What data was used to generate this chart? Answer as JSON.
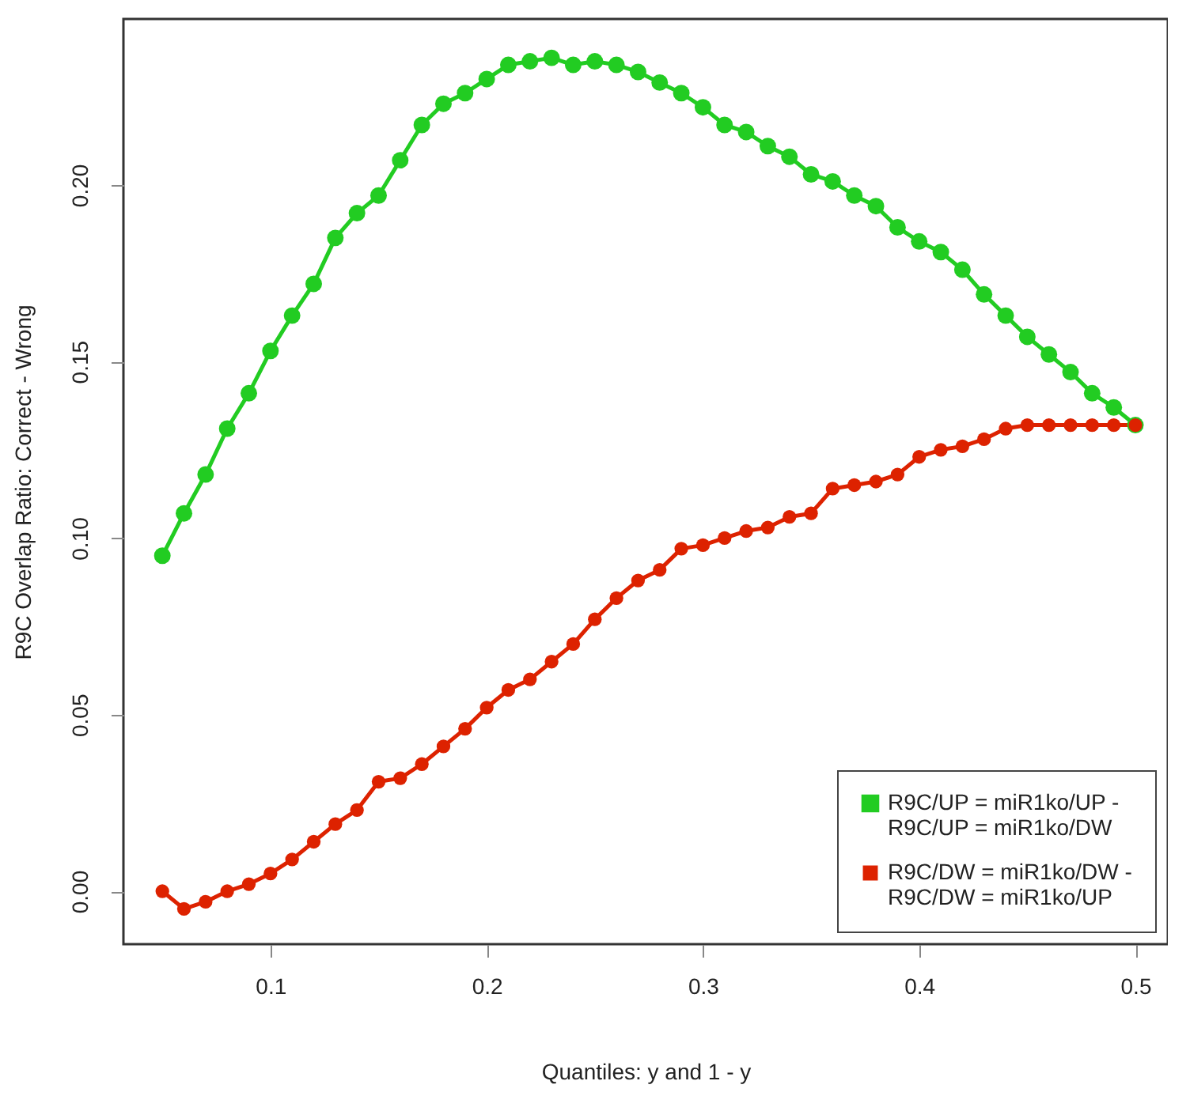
{
  "chart_data": {
    "type": "line",
    "xlabel": "Quantiles: y and 1 - y",
    "ylabel": "R9C Overlap Ratio: Correct - Wrong",
    "x": [
      0.05,
      0.06,
      0.07,
      0.08,
      0.09,
      0.1,
      0.11,
      0.12,
      0.13,
      0.14,
      0.15,
      0.16,
      0.17,
      0.18,
      0.19,
      0.2,
      0.21,
      0.22,
      0.23,
      0.24,
      0.25,
      0.26,
      0.27,
      0.28,
      0.29,
      0.3,
      0.31,
      0.32,
      0.33,
      0.34,
      0.35,
      0.36,
      0.37,
      0.38,
      0.39,
      0.4,
      0.41,
      0.42,
      0.43,
      0.44,
      0.45,
      0.46,
      0.47,
      0.48,
      0.49,
      0.5
    ],
    "series": [
      {
        "name": "R9C/UP = miR1ko/UP -\nR9C/UP = miR1ko/DW",
        "color": "#22cc22",
        "values": [
          0.095,
          0.107,
          0.118,
          0.131,
          0.141,
          0.153,
          0.163,
          0.172,
          0.185,
          0.192,
          0.197,
          0.207,
          0.217,
          0.223,
          0.226,
          0.23,
          0.234,
          0.235,
          0.236,
          0.234,
          0.235,
          0.234,
          0.232,
          0.229,
          0.226,
          0.222,
          0.217,
          0.215,
          0.211,
          0.208,
          0.203,
          0.201,
          0.197,
          0.194,
          0.188,
          0.184,
          0.181,
          0.176,
          0.169,
          0.163,
          0.157,
          0.152,
          0.147,
          0.141,
          0.137,
          0.132
        ]
      },
      {
        "name": "R9C/DW = miR1ko/DW -\nR9C/DW = miR1ko/UP",
        "color": "#dd2200",
        "values": [
          0.0,
          -0.005,
          -0.003,
          0.0,
          0.002,
          0.005,
          0.009,
          0.014,
          0.019,
          0.023,
          0.031,
          0.032,
          0.036,
          0.041,
          0.046,
          0.052,
          0.057,
          0.06,
          0.065,
          0.07,
          0.077,
          0.083,
          0.088,
          0.091,
          0.097,
          0.098,
          0.1,
          0.102,
          0.103,
          0.106,
          0.107,
          0.114,
          0.115,
          0.116,
          0.118,
          0.123,
          0.125,
          0.126,
          0.128,
          0.131,
          0.132,
          0.132,
          0.132,
          0.132,
          0.132,
          0.132
        ]
      }
    ],
    "xlim": [
      0.032,
      0.515
    ],
    "xticks": [
      0.1,
      0.2,
      0.3,
      0.4,
      0.5
    ],
    "ylim": [
      -0.015,
      0.247
    ],
    "yticks": [
      {
        "value": 0,
        "label": "0.00"
      },
      {
        "value": 0.05,
        "label": "0.05"
      },
      {
        "value": 0.1,
        "label": "0.10"
      },
      {
        "value": 0.15,
        "label": "0.15"
      },
      {
        "value": 0.2,
        "label": "0.20"
      }
    ],
    "grid": false,
    "legend": "bottom right",
    "marker": "circle",
    "line_style": "solid"
  }
}
